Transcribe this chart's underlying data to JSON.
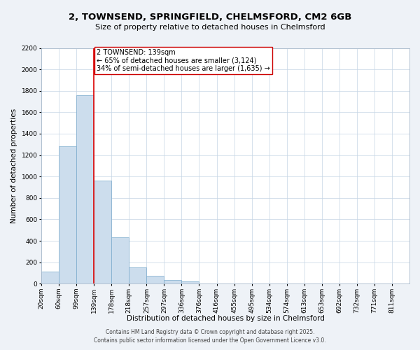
{
  "title": "2, TOWNSEND, SPRINGFIELD, CHELMSFORD, CM2 6GB",
  "subtitle": "Size of property relative to detached houses in Chelmsford",
  "xlabel": "Distribution of detached houses by size in Chelmsford",
  "ylabel": "Number of detached properties",
  "bin_labels": [
    "20sqm",
    "60sqm",
    "99sqm",
    "139sqm",
    "178sqm",
    "218sqm",
    "257sqm",
    "297sqm",
    "336sqm",
    "376sqm",
    "416sqm",
    "455sqm",
    "495sqm",
    "534sqm",
    "574sqm",
    "613sqm",
    "653sqm",
    "692sqm",
    "732sqm",
    "771sqm",
    "811sqm"
  ],
  "bar_values": [
    115,
    1285,
    1760,
    960,
    430,
    150,
    75,
    35,
    20,
    0,
    0,
    0,
    0,
    0,
    0,
    0,
    0,
    0,
    0,
    0,
    0
  ],
  "bar_color": "#ccdded",
  "bar_edge_color": "#7aaacc",
  "vline_x": 3,
  "vline_color": "#dd0000",
  "annotation_title": "2 TOWNSEND: 139sqm",
  "annotation_line1": "← 65% of detached houses are smaller (3,124)",
  "annotation_line2": "34% of semi-detached houses are larger (1,635) →",
  "annotation_box_color": "#ffffff",
  "annotation_box_edge": "#cc0000",
  "ylim": [
    0,
    2200
  ],
  "yticks": [
    0,
    200,
    400,
    600,
    800,
    1000,
    1200,
    1400,
    1600,
    1800,
    2000,
    2200
  ],
  "footer_line1": "Contains HM Land Registry data © Crown copyright and database right 2025.",
  "footer_line2": "Contains public sector information licensed under the Open Government Licence v3.0.",
  "bg_color": "#eef2f7",
  "plot_bg_color": "#ffffff",
  "grid_color": "#c5d5e5",
  "title_fontsize": 9.5,
  "subtitle_fontsize": 8,
  "axis_label_fontsize": 7.5,
  "tick_fontsize": 6.5,
  "annotation_fontsize": 7,
  "footer_fontsize": 5.5
}
